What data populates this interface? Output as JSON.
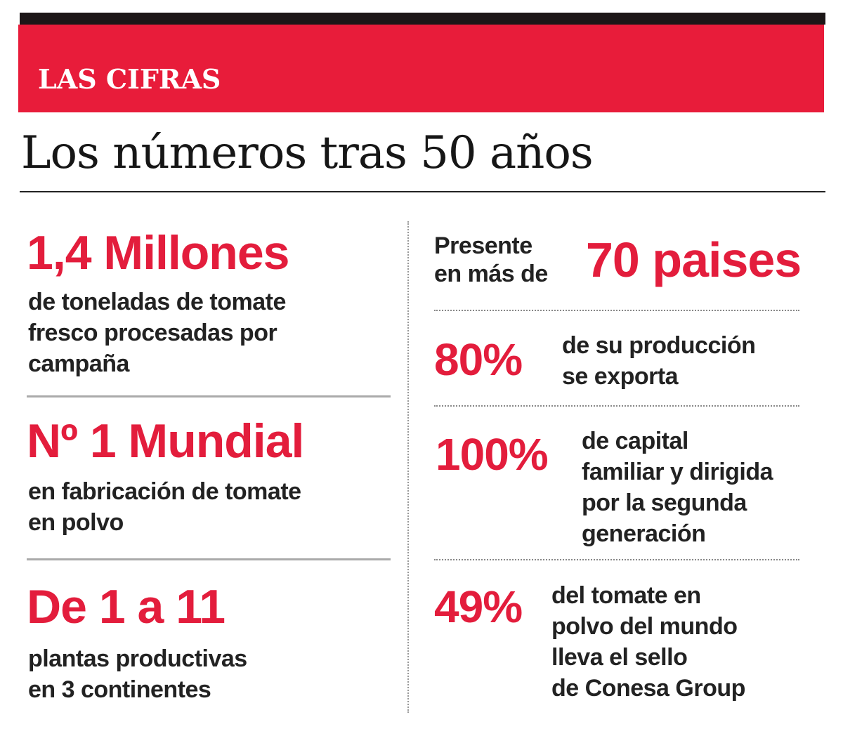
{
  "header": {
    "kicker": "LAS CIFRAS",
    "title": "Los números tras 50 años"
  },
  "accent_color": "#e81c3a",
  "left_column": [
    {
      "figure": "1,4 Millones",
      "lines": [
        "de toneladas de tomate",
        "fresco procesadas por",
        "campaña"
      ]
    },
    {
      "figure": "Nº 1 Mundial",
      "lines": [
        "en fabricación de tomate",
        "en polvo"
      ]
    },
    {
      "figure": "De 1 a 11",
      "lines": [
        "plantas productivas",
        "en 3 continentes"
      ]
    }
  ],
  "right_column": [
    {
      "prefix_lines": [
        "Presente",
        "en más de"
      ],
      "figure": "70 paises"
    },
    {
      "figure": "80%",
      "lines": [
        "de su producción",
        "se exporta"
      ]
    },
    {
      "figure": "100%",
      "lines": [
        "de capital",
        "familiar y dirigida",
        "por la segunda",
        "generación"
      ]
    },
    {
      "figure": "49%",
      "lines": [
        "del tomate en",
        "polvo del mundo",
        "lleva el sello",
        "de Conesa Group"
      ]
    }
  ]
}
